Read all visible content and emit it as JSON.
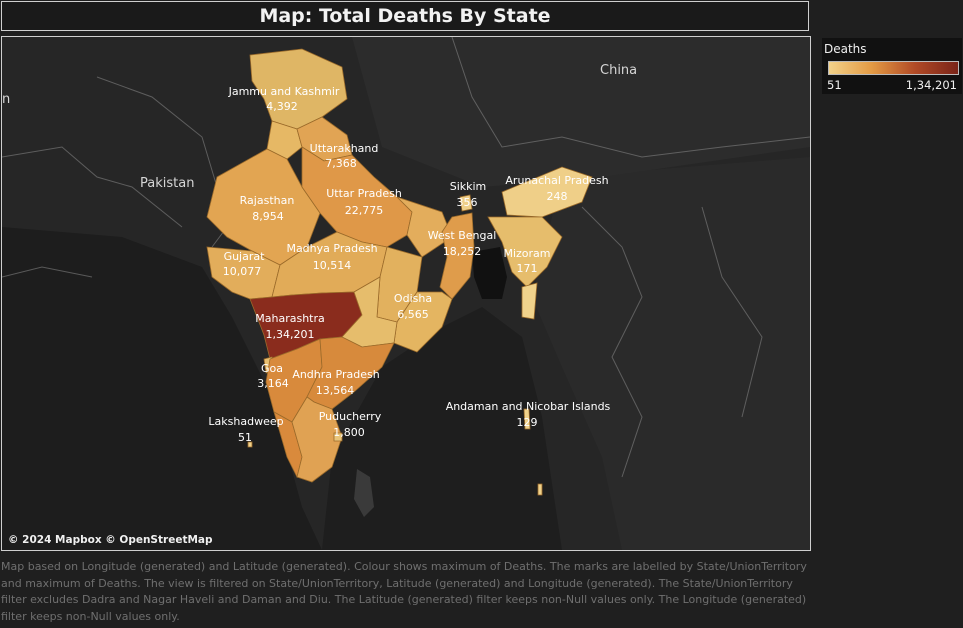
{
  "title": "Map: Total Deaths By State",
  "legend": {
    "title": "Deaths",
    "min_label": "51",
    "max_label": "1,34,201",
    "colors": [
      "#f2d28a",
      "#e39a44",
      "#b14a26",
      "#7a2418"
    ]
  },
  "attribution": "© 2024 Mapbox © OpenStreetMap",
  "country_labels": {
    "china": "China",
    "pakistan": "Pakistan",
    "left_edge": "n"
  },
  "states": [
    {
      "name": "Jammu and Kashmir",
      "value": "4,392",
      "deaths": 4392,
      "color": "#dfb665"
    },
    {
      "name": "Uttarakhand",
      "value": "7,368",
      "deaths": 7368,
      "color": "#e1a454"
    },
    {
      "name": "Rajasthan",
      "value": "8,954",
      "deaths": 8954,
      "color": "#e2a552"
    },
    {
      "name": "Uttar Pradesh",
      "value": "22,775",
      "deaths": 22775,
      "color": "#df9848"
    },
    {
      "name": "Sikkim",
      "value": "356",
      "deaths": 356,
      "color": "#efcf88"
    },
    {
      "name": "Arunachal Pradesh",
      "value": "248",
      "deaths": 248,
      "color": "#efcf88"
    },
    {
      "name": "West Bengal",
      "value": "18,252",
      "deaths": 18252,
      "color": "#df9c4b"
    },
    {
      "name": "Mizoram",
      "value": "171",
      "deaths": 171,
      "color": "#f0d28b"
    },
    {
      "name": "Gujarat",
      "value": "10,077",
      "deaths": 10077,
      "color": "#e2ad5b"
    },
    {
      "name": "Madhya Pradesh",
      "value": "10,514",
      "deaths": 10514,
      "color": "#e1ab58"
    },
    {
      "name": "Odisha",
      "value": "6,565",
      "deaths": 6565,
      "color": "#e4b561"
    },
    {
      "name": "Maharashtra",
      "value": "1,34,201",
      "deaths": 134201,
      "color": "#8a2c1d"
    },
    {
      "name": "Goa",
      "value": "3,164",
      "deaths": 3164,
      "color": "#e8c072"
    },
    {
      "name": "Andhra Pradesh",
      "value": "13,564",
      "deaths": 13564,
      "color": "#d78a3c"
    },
    {
      "name": "Lakshadweep",
      "value": "51",
      "deaths": 51,
      "color": "#f2d28a"
    },
    {
      "name": "Puducherry",
      "value": "1,800",
      "deaths": 1800,
      "color": "#e9c579"
    },
    {
      "name": "Andaman and Nicobar Islands",
      "value": "129",
      "deaths": 129,
      "color": "#f0d28b"
    }
  ],
  "caption": "Map based on Longitude (generated) and Latitude (generated).  Colour shows maximum of Deaths.  The marks are labelled by State/UnionTerritory and maximum of Deaths. The view is filtered on State/UnionTerritory, Latitude (generated) and Longitude (generated). The State/UnionTerritory filter excludes Dadra and Nagar Haveli and Daman and Diu. The Latitude (generated) filter keeps non-Null values only. The Longitude (generated) filter keeps non-Null values only."
}
